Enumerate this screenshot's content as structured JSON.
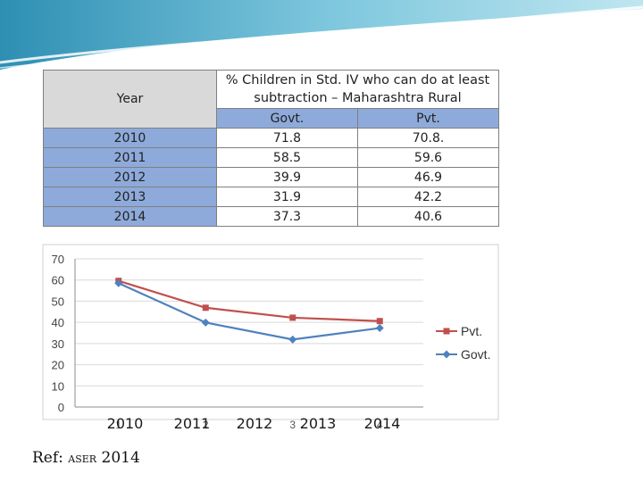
{
  "colors": {
    "govt": "#4f81bd",
    "pvt": "#c0504d",
    "header_blue": "#8eaadb",
    "header_grey": "#d9d9d9"
  },
  "table": {
    "year_label": "Year",
    "title": "% Children in Std. IV who can do at least subtraction – Maharashtra Rural",
    "title_line1": "% Children in Std. IV who can do at least",
    "title_line2": "subtraction – Maharashtra Rural",
    "col_govt": "Govt.",
    "col_pvt": "Pvt.",
    "rows": [
      {
        "year": "2010",
        "govt": "71.8",
        "pvt": "70.8."
      },
      {
        "year": "2011",
        "govt": "58.5",
        "pvt": "59.6"
      },
      {
        "year": "2012",
        "govt": "39.9",
        "pvt": "46.9"
      },
      {
        "year": "2013",
        "govt": "31.9",
        "pvt": "42.2"
      },
      {
        "year": "2014",
        "govt": "37.3",
        "pvt": "40.6"
      }
    ]
  },
  "chart_data": {
    "type": "line",
    "x": [
      "1",
      "2",
      "3",
      "4"
    ],
    "x_overlay_labels": [
      "2010",
      "2011",
      "2012",
      "2013",
      "2014"
    ],
    "series": [
      {
        "name": "Pvt.",
        "values": [
          59.6,
          46.9,
          42.2,
          40.6
        ]
      },
      {
        "name": "Govt.",
        "values": [
          58.5,
          39.9,
          31.9,
          37.3
        ]
      }
    ],
    "ylim": [
      0,
      70
    ],
    "yticks": [
      0,
      10,
      20,
      30,
      40,
      50,
      60,
      70
    ],
    "grid": true,
    "legend": "right"
  },
  "reference": {
    "prefix": "Ref:",
    "source": "ASER",
    "year": "2014"
  }
}
